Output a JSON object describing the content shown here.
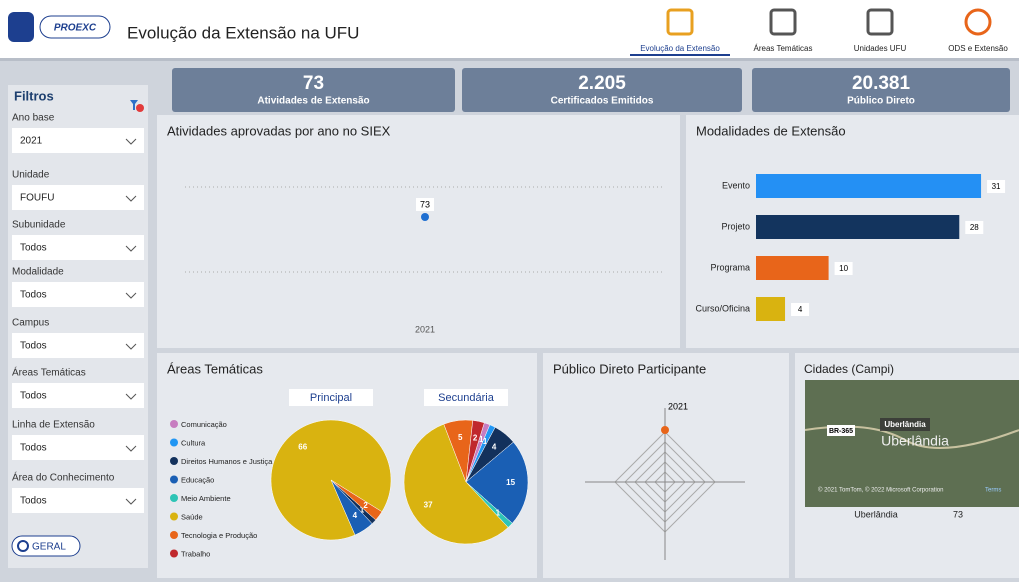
{
  "header": {
    "logo": "PROEXC",
    "title": "Evolução da Extensão na UFU",
    "nav": [
      "Evolução da Extensão",
      "Áreas Temáticas",
      "Unidades UFU",
      "ODS e Extensão"
    ]
  },
  "filters": {
    "title": "Filtros",
    "fields": [
      {
        "label": "Ano base",
        "value": "2021"
      },
      {
        "label": "Unidade",
        "value": "FOUFU"
      },
      {
        "label": "Subunidade",
        "value": "Todos"
      },
      {
        "label": "Modalidade",
        "value": "Todos"
      },
      {
        "label": "Campus",
        "value": "Todos"
      },
      {
        "label": "Áreas Temáticas",
        "value": "Todos"
      },
      {
        "label": "Linha de Extensão",
        "value": "Todos"
      },
      {
        "label": "Área do Conhecimento",
        "value": "Todos"
      }
    ],
    "button": "GERAL"
  },
  "kpis": [
    {
      "value": "73",
      "label": "Atividades de Extensão"
    },
    {
      "value": "2.205",
      "label": "Certificados Emitidos"
    },
    {
      "value": "20.381",
      "label": "Público Direto"
    }
  ],
  "chart_data": [
    {
      "type": "line",
      "title": "Atividades aprovadas por ano no SIEX",
      "categories": [
        "2021"
      ],
      "values": [
        73
      ],
      "color": "#1f6fd1"
    },
    {
      "type": "hbar",
      "title": "Modalidades de Extensão",
      "categories": [
        "Evento",
        "Projeto",
        "Programa",
        "Curso/Oficina"
      ],
      "values": [
        31,
        28,
        10,
        4
      ],
      "colors": [
        "#2490f4",
        "#13345e",
        "#e8651a",
        "#d9b310"
      ]
    },
    {
      "type": "pie",
      "title": "Áreas Temáticas",
      "categories": [
        "Comunicação",
        "Cultura",
        "Direitos Humanos e Justiça",
        "Educação",
        "Meio Ambiente",
        "Saúde",
        "Tecnologia e Produção",
        "Trabalho"
      ],
      "colors": [
        "#c77dc0",
        "#2196f3",
        "#13315c",
        "#1a5fb4",
        "#2ec4b6",
        "#d9b310",
        "#e8651a",
        "#c0282d"
      ],
      "series": [
        {
          "name": "Principal",
          "values": [
            null,
            null,
            1,
            4,
            null,
            66,
            2,
            null
          ]
        },
        {
          "name": "Secundária",
          "values": [
            1,
            1,
            4,
            15,
            1,
            37,
            5,
            2
          ]
        }
      ]
    },
    {
      "type": "radar",
      "title": "Público Direto Participante",
      "categories": [
        "2021"
      ],
      "values": [
        20381
      ],
      "color": "#e8651a"
    }
  ],
  "map": {
    "title": "Cidades (Campi)",
    "labels": [
      "BR-365",
      "Uberlândia",
      "Uberlândia"
    ],
    "attribution": "© 2021 TomTom, © 2022 Microsoft Corporation",
    "terms": "Terms",
    "table": [
      [
        "Uberlândia",
        "73"
      ]
    ]
  }
}
